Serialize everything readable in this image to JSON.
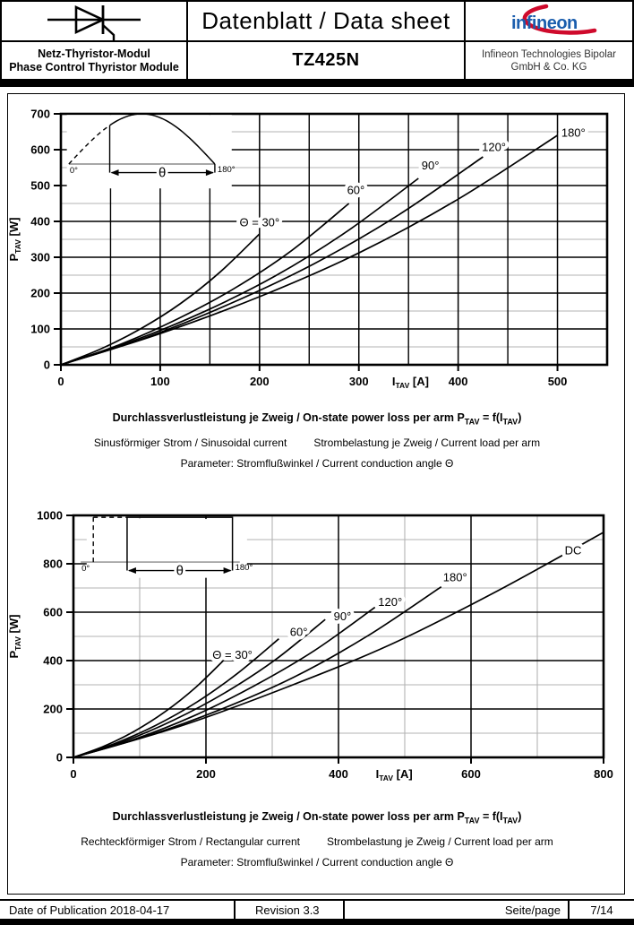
{
  "header": {
    "title": "Datenblatt / Data sheet",
    "part_number": "TZ425N",
    "product_line1": "Netz-Thyristor-Modul",
    "product_line2": "Phase Control Thyristor Module",
    "company_line1": "Infineon Technologies Bipolar",
    "company_line2": "GmbH & Co. KG",
    "logo_text": "infineon"
  },
  "footer": {
    "publication": "Date of Publication 2018-04-17",
    "revision": "Revision 3.3",
    "page_label": "Seite/page",
    "page_number": "7/14"
  },
  "colors": {
    "ink": "#000000",
    "grid_minor": "#b3b3b3",
    "inset_baseline": "#8a8a8a",
    "logo_blue": "#1a5dad",
    "logo_red": "#cf0a2c"
  },
  "chart_data": [
    {
      "type": "line",
      "title_plain": "Durchlassverlustleistung je Zweig / On-state power loss per arm PTAV = f(ITAV)",
      "waveform": "sinusoidal",
      "xlabel": "ITAV [A]",
      "ylabel": "PTAV [W]",
      "xlabel_parts": {
        "base": "I",
        "sub": "TAV",
        "unit": " [A]"
      },
      "ylabel_parts": {
        "base": "P",
        "sub": "TAV",
        "unit": " [W]"
      },
      "xlim": [
        0,
        550
      ],
      "ylim": [
        0,
        700
      ],
      "x_tick_step": 100,
      "x_grid_step": 50,
      "x_minor_black": true,
      "y_major_step": 100,
      "y_minor_step": 50,
      "x_ticks": [
        0,
        100,
        200,
        300,
        400,
        500
      ],
      "y_ticks": [
        0,
        100,
        200,
        300,
        400,
        500,
        600,
        700
      ],
      "xlabel_pos_x": 352,
      "grid": true,
      "legend_position": "on-curve",
      "series": [
        {
          "name": "Θ = 30°",
          "label_x": 200,
          "label_y": 398,
          "points": [
            [
              0,
              0
            ],
            [
              40,
              44
            ],
            [
              80,
              100
            ],
            [
              120,
              170
            ],
            [
              160,
              258
            ],
            [
              200,
              365
            ]
          ]
        },
        {
          "name": "60°",
          "label_x": 297,
          "label_y": 487,
          "points": [
            [
              0,
              0
            ],
            [
              58,
              55
            ],
            [
              116,
              126
            ],
            [
              174,
              212
            ],
            [
              232,
              318
            ],
            [
              290,
              450
            ]
          ]
        },
        {
          "name": "90°",
          "label_x": 372,
          "label_y": 556,
          "points": [
            [
              0,
              0
            ],
            [
              72,
              66
            ],
            [
              144,
              148
            ],
            [
              216,
              248
            ],
            [
              288,
              372
            ],
            [
              360,
              520
            ]
          ]
        },
        {
          "name": "120°",
          "label_x": 436,
          "label_y": 608,
          "points": [
            [
              0,
              0
            ],
            [
              85,
              75
            ],
            [
              170,
              170
            ],
            [
              255,
              282
            ],
            [
              340,
              418
            ],
            [
              425,
              580
            ]
          ]
        },
        {
          "name": "180°",
          "label_x": 516,
          "label_y": 648,
          "points": [
            [
              0,
              0
            ],
            [
              100,
              87
            ],
            [
              200,
              190
            ],
            [
              300,
              312
            ],
            [
              400,
              462
            ],
            [
              500,
              640
            ]
          ]
        }
      ],
      "inset": {
        "type": "sine",
        "x0": 8,
        "x1": 155,
        "baseline_y": 560,
        "amplitude": 140,
        "firing_frac": 0.28,
        "arrow_y": 536,
        "bg": {
          "x0": 6,
          "y0": 492,
          "x1": 172,
          "y1": 697
        },
        "label_start": "0°",
        "label_end": "180°",
        "theta": "θ"
      },
      "caption": {
        "line1_prefix": "Durchlassverlustleistung je Zweig / On-state power loss per arm P",
        "line1_sub1": "TAV",
        "line1_mid": " = f(I",
        "line1_sub2": "TAV",
        "line1_suffix": ")",
        "line2_left": "Sinusförmiger Strom / Sinusoidal current",
        "line2_right": "Strombelastung je Zweig / Current load per arm",
        "line3": "Parameter: Stromflußwinkel / Current conduction angle Θ"
      }
    },
    {
      "type": "line",
      "title_plain": "Durchlassverlustleistung je Zweig / On-state power loss per arm PTAV = f(ITAV)",
      "waveform": "rectangular",
      "xlabel": "ITAV [A]",
      "ylabel": "PTAV [W]",
      "xlabel_parts": {
        "base": "I",
        "sub": "TAV",
        "unit": " [A]"
      },
      "ylabel_parts": {
        "base": "P",
        "sub": "TAV",
        "unit": " [W]"
      },
      "xlim": [
        0,
        800
      ],
      "ylim": [
        0,
        1000
      ],
      "x_tick_step": 200,
      "x_grid_step": 100,
      "x_minor_black": false,
      "y_major_step": 200,
      "y_minor_step": 100,
      "x_ticks": [
        0,
        200,
        400,
        600,
        800
      ],
      "y_ticks": [
        0,
        200,
        400,
        600,
        800,
        1000
      ],
      "xlabel_pos_x": 484,
      "grid": true,
      "legend_position": "on-curve",
      "series": [
        {
          "name": "Θ = 30°",
          "label_x": 240,
          "label_y": 424,
          "points": [
            [
              0,
              0
            ],
            [
              46,
              46
            ],
            [
              92,
              108
            ],
            [
              138,
              188
            ],
            [
              184,
              288
            ],
            [
              230,
              410
            ]
          ]
        },
        {
          "name": "60°",
          "label_x": 340,
          "label_y": 518,
          "points": [
            [
              0,
              0
            ],
            [
              62,
              57
            ],
            [
              124,
              132
            ],
            [
              186,
              228
            ],
            [
              248,
              348
            ],
            [
              310,
              490
            ]
          ]
        },
        {
          "name": "90°",
          "label_x": 406,
          "label_y": 584,
          "points": [
            [
              0,
              0
            ],
            [
              76,
              66
            ],
            [
              152,
              155
            ],
            [
              228,
              266
            ],
            [
              304,
              402
            ],
            [
              380,
              570
            ]
          ]
        },
        {
          "name": "120°",
          "label_x": 478,
          "label_y": 642,
          "points": [
            [
              0,
              0
            ],
            [
              91,
              74
            ],
            [
              182,
              172
            ],
            [
              273,
              296
            ],
            [
              364,
              442
            ],
            [
              455,
              620
            ]
          ]
        },
        {
          "name": "180°",
          "label_x": 576,
          "label_y": 744,
          "points": [
            [
              0,
              0
            ],
            [
              111,
              88
            ],
            [
              222,
              198
            ],
            [
              333,
              332
            ],
            [
              444,
              502
            ],
            [
              555,
              705
            ]
          ]
        },
        {
          "name": "DC",
          "label_x": 754,
          "label_y": 856,
          "points": [
            [
              0,
              0
            ],
            [
              160,
              128
            ],
            [
              320,
              288
            ],
            [
              480,
              468
            ],
            [
              640,
              688
            ],
            [
              800,
              930
            ]
          ]
        }
      ],
      "inset": {
        "type": "rect",
        "x0": 11,
        "x1": 251,
        "baseline_y": 807,
        "dash_x": 30,
        "rect_x0": 81,
        "rect_x1": 240,
        "top_y": 992,
        "arrow_y": 772,
        "bg": {
          "x0": 20,
          "y0": 742,
          "x1": 262,
          "y1": 985
        },
        "label_start": "0°",
        "label_end": "180°",
        "theta": "θ"
      },
      "caption": {
        "line1_prefix": "Durchlassverlustleistung je Zweig / On-state power loss per arm P",
        "line1_sub1": "TAV",
        "line1_mid": " = f(I",
        "line1_sub2": "TAV",
        "line1_suffix": ")",
        "line2_left": "Rechteckförmiger Strom / Rectangular current",
        "line2_right": "Strombelastung je Zweig / Current load per arm",
        "line3": "Parameter: Stromflußwinkel / Current conduction angle Θ"
      }
    }
  ]
}
